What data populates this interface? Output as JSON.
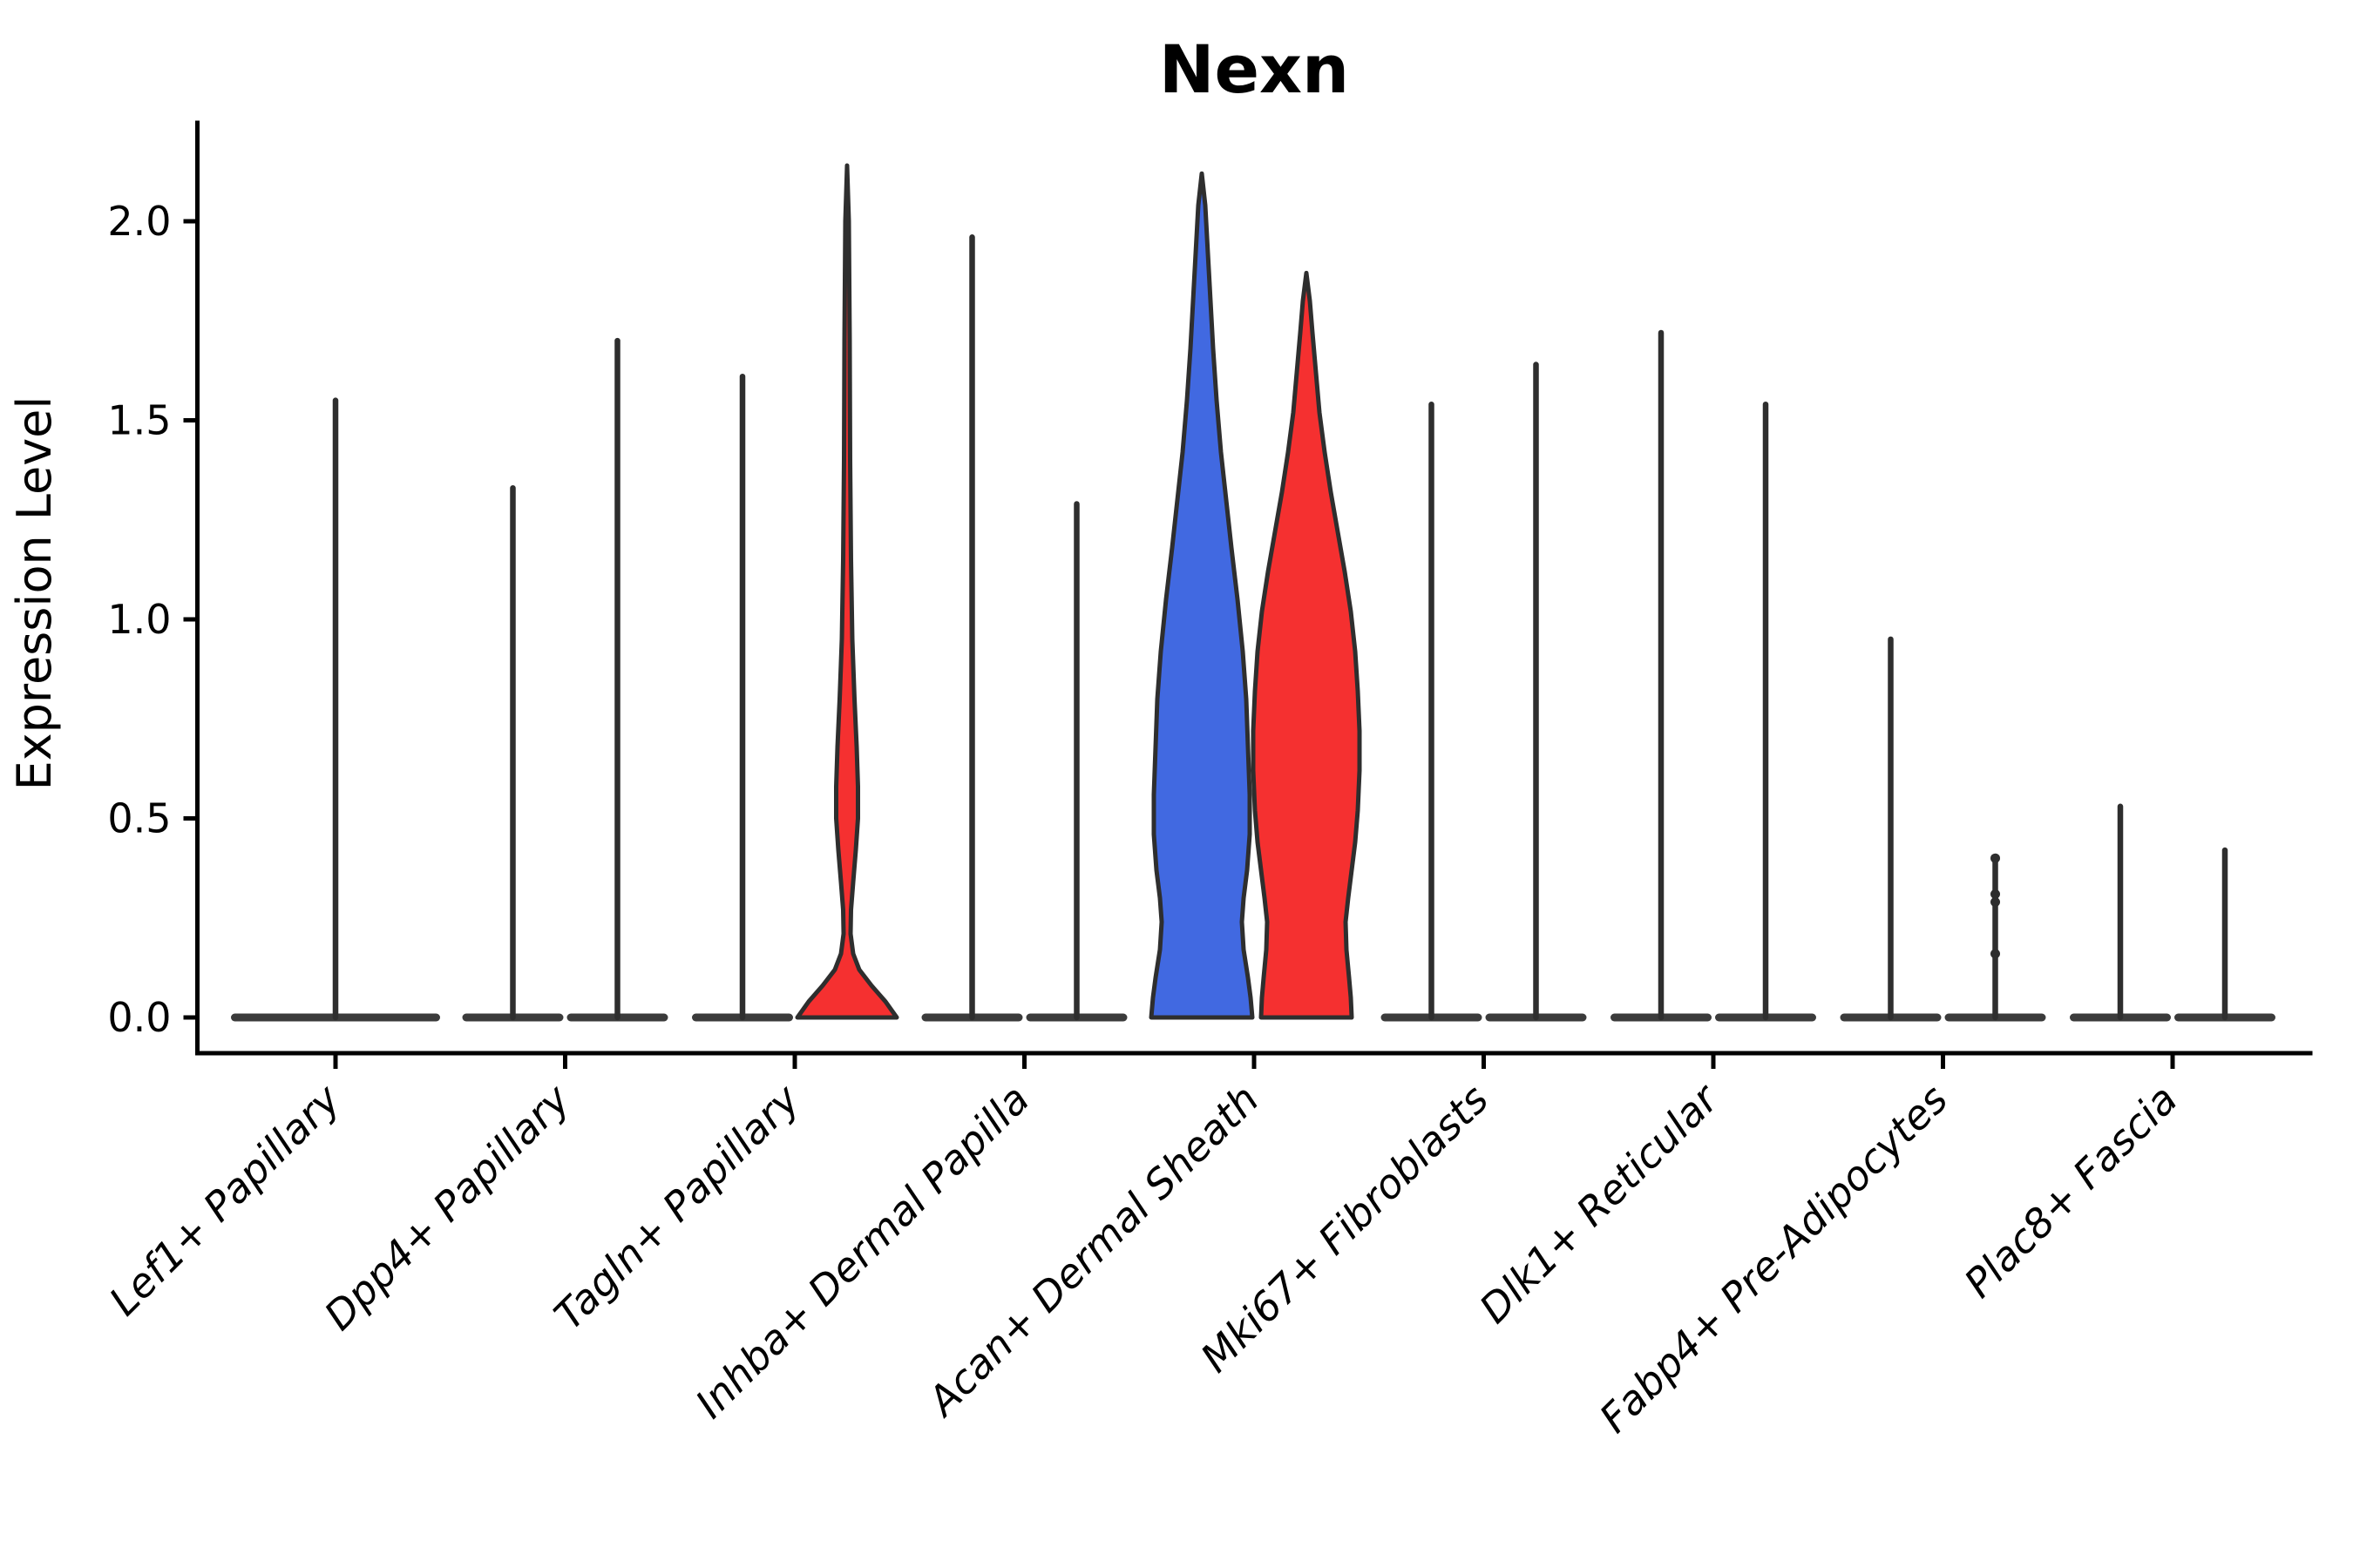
{
  "title": "Nexn",
  "ylabel": "Expression Level",
  "colors": {
    "blue": "#4169E1",
    "red": "#F53030",
    "line": "#2E2E2E",
    "axis": "#000000",
    "strip": "#3B3B3B"
  },
  "chart_data": {
    "type": "violin",
    "title": "Nexn",
    "xlabel": "",
    "ylabel": "Expression Level",
    "ylim": [
      -0.1,
      2.25
    ],
    "yticks": [
      0.0,
      0.5,
      1.0,
      1.5,
      2.0
    ],
    "ytick_labels": [
      "0.0",
      "0.5",
      "1.0",
      "1.5",
      "2.0"
    ],
    "grid": false,
    "legend_position": "none",
    "categories": [
      "Lef1+ Papillary",
      "Dpp4+ Papillary",
      "Tagln+ Papillary",
      "Inhba+ Dermal Papilla",
      "Acan+ Dermal Sheath",
      "Mki67+ Fibroblasts",
      "Dlk1+ Reticular",
      "Fabp4+ Pre-Adipocytes",
      "Plac8+ Fascia"
    ],
    "groups": [
      {
        "name": "left",
        "color": "#4169E1"
      },
      {
        "name": "right",
        "color": "#F53030"
      }
    ],
    "series": [
      {
        "name": "left",
        "max_expression": [
          1.55,
          1.33,
          1.61,
          1.96,
          2.12,
          1.54,
          1.72,
          0.95,
          0.53
        ]
      },
      {
        "name": "right",
        "max_expression": [
          null,
          1.7,
          2.14,
          1.29,
          1.87,
          1.64,
          1.54,
          0.4,
          0.42
        ]
      }
    ],
    "violins": [
      {
        "cat": 0,
        "side": "center",
        "kind": "spike",
        "color": null,
        "max": 1.55
      },
      {
        "cat": 1,
        "side": "left",
        "kind": "spike",
        "color": null,
        "max": 1.33
      },
      {
        "cat": 1,
        "side": "right",
        "kind": "spike",
        "color": null,
        "max": 1.7
      },
      {
        "cat": 2,
        "side": "left",
        "kind": "spike",
        "color": null,
        "max": 1.61
      },
      {
        "cat": 2,
        "side": "right",
        "kind": "shape",
        "color": "red",
        "max": 2.14,
        "profile": [
          [
            2.14,
            0
          ],
          [
            2.0,
            2
          ],
          [
            1.7,
            3
          ],
          [
            1.4,
            3.5
          ],
          [
            1.15,
            4.5
          ],
          [
            0.95,
            6
          ],
          [
            0.8,
            8.5
          ],
          [
            0.68,
            11
          ],
          [
            0.58,
            12.5
          ],
          [
            0.5,
            12.5
          ],
          [
            0.42,
            10
          ],
          [
            0.34,
            7
          ],
          [
            0.27,
            4.5
          ],
          [
            0.21,
            4
          ],
          [
            0.16,
            7
          ],
          [
            0.12,
            14
          ],
          [
            0.08,
            28
          ],
          [
            0.04,
            44
          ],
          [
            0.0,
            57
          ]
        ]
      },
      {
        "cat": 3,
        "side": "left",
        "kind": "spike",
        "color": null,
        "max": 1.96
      },
      {
        "cat": 3,
        "side": "right",
        "kind": "spike",
        "color": null,
        "max": 1.29
      },
      {
        "cat": 4,
        "side": "left",
        "kind": "shape",
        "color": "blue",
        "max": 2.12,
        "profile": [
          [
            2.12,
            0
          ],
          [
            2.04,
            4
          ],
          [
            1.92,
            7
          ],
          [
            1.8,
            10
          ],
          [
            1.68,
            13
          ],
          [
            1.55,
            17
          ],
          [
            1.42,
            22
          ],
          [
            1.3,
            28
          ],
          [
            1.18,
            34
          ],
          [
            1.05,
            41
          ],
          [
            0.92,
            47
          ],
          [
            0.8,
            51
          ],
          [
            0.68,
            53
          ],
          [
            0.56,
            55
          ],
          [
            0.46,
            55
          ],
          [
            0.37,
            52
          ],
          [
            0.3,
            48
          ],
          [
            0.24,
            46
          ],
          [
            0.17,
            48
          ],
          [
            0.1,
            53
          ],
          [
            0.05,
            56
          ],
          [
            0.0,
            58
          ]
        ]
      },
      {
        "cat": 4,
        "side": "right",
        "kind": "shape",
        "color": "red",
        "max": 1.87,
        "profile": [
          [
            1.87,
            0
          ],
          [
            1.8,
            4
          ],
          [
            1.72,
            7
          ],
          [
            1.62,
            11
          ],
          [
            1.52,
            15
          ],
          [
            1.42,
            21
          ],
          [
            1.32,
            28
          ],
          [
            1.22,
            36
          ],
          [
            1.12,
            44
          ],
          [
            1.02,
            51
          ],
          [
            0.92,
            56
          ],
          [
            0.82,
            59
          ],
          [
            0.72,
            61
          ],
          [
            0.62,
            61
          ],
          [
            0.52,
            59
          ],
          [
            0.44,
            56
          ],
          [
            0.37,
            52
          ],
          [
            0.3,
            48
          ],
          [
            0.24,
            45
          ],
          [
            0.17,
            46
          ],
          [
            0.1,
            49
          ],
          [
            0.05,
            51
          ],
          [
            0.0,
            52
          ]
        ]
      },
      {
        "cat": 5,
        "side": "left",
        "kind": "spike",
        "color": null,
        "max": 1.54
      },
      {
        "cat": 5,
        "side": "right",
        "kind": "spike",
        "color": null,
        "max": 1.64
      },
      {
        "cat": 6,
        "side": "left",
        "kind": "spike",
        "color": null,
        "max": 1.72
      },
      {
        "cat": 6,
        "side": "right",
        "kind": "spike",
        "color": null,
        "max": 1.54
      },
      {
        "cat": 7,
        "side": "left",
        "kind": "spike",
        "color": null,
        "max": 0.95
      },
      {
        "cat": 7,
        "side": "right",
        "kind": "spike",
        "color": null,
        "max": 0.4,
        "knots": [
          0.4,
          0.31,
          0.29,
          0.16
        ]
      },
      {
        "cat": 8,
        "side": "left",
        "kind": "spike",
        "color": null,
        "max": 0.53
      },
      {
        "cat": 8,
        "side": "right",
        "kind": "spike",
        "color": null,
        "max": 0.42
      }
    ]
  }
}
